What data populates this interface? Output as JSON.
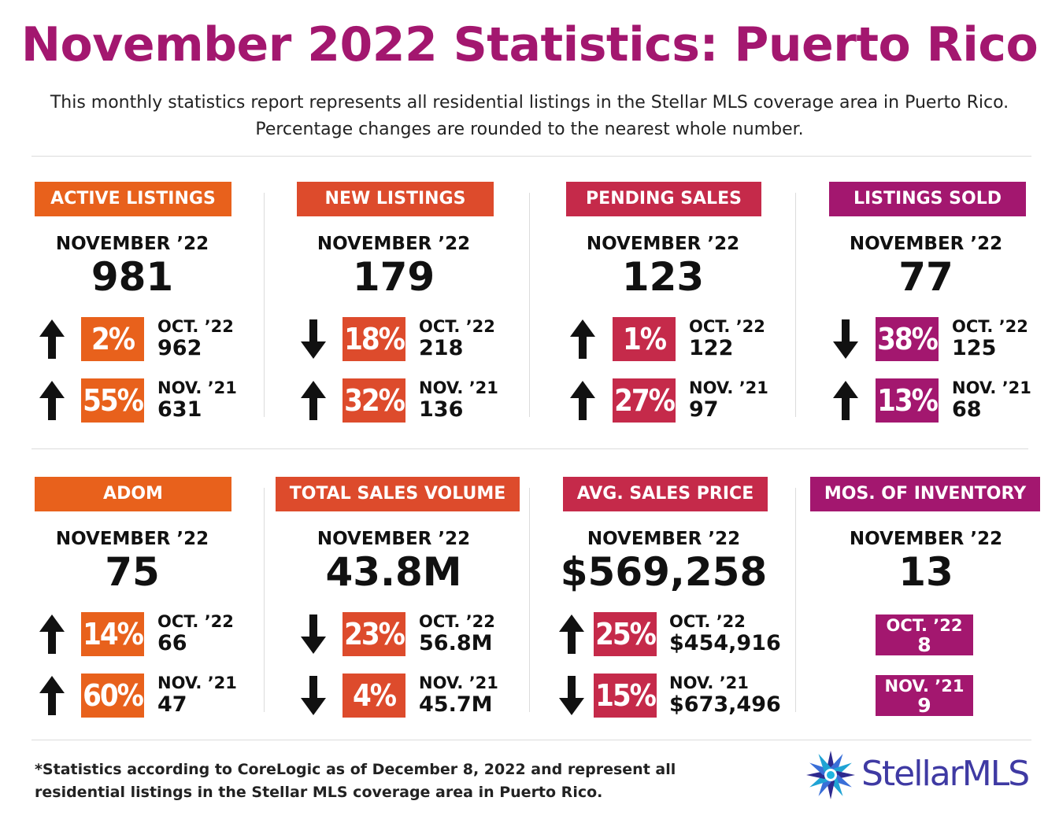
{
  "title": "November 2022 Statistics: Puerto Rico",
  "subtitle": "This monthly statistics report represents all residential listings in the Stellar MLS coverage area in Puerto Rico. Percentage changes are rounded to the nearest whole number.",
  "colors": {
    "title": "#a3176f",
    "orange": "#e8611c",
    "red_orange": "#dd4b2c",
    "crimson": "#c52a4a",
    "magenta": "#a3176f"
  },
  "panels": [
    {
      "label": "ACTIVE LISTINGS",
      "period": "NOVEMBER ’22",
      "value": "981",
      "rows": [
        {
          "direction": "up",
          "pct": "2%",
          "cmp_label": "OCT. ’22",
          "cmp_value": "962"
        },
        {
          "direction": "up",
          "pct": "55%",
          "cmp_label": "NOV. ’21",
          "cmp_value": "631"
        }
      ]
    },
    {
      "label": "NEW LISTINGS",
      "period": "NOVEMBER ’22",
      "value": "179",
      "rows": [
        {
          "direction": "down",
          "pct": "18%",
          "cmp_label": "OCT. ’22",
          "cmp_value": "218"
        },
        {
          "direction": "up",
          "pct": "32%",
          "cmp_label": "NOV. ’21",
          "cmp_value": "136"
        }
      ]
    },
    {
      "label": "PENDING SALES",
      "period": "NOVEMBER ’22",
      "value": "123",
      "rows": [
        {
          "direction": "up",
          "pct": "1%",
          "cmp_label": "OCT. ’22",
          "cmp_value": "122"
        },
        {
          "direction": "up",
          "pct": "27%",
          "cmp_label": "NOV. ’21",
          "cmp_value": "97"
        }
      ]
    },
    {
      "label": "LISTINGS SOLD",
      "period": "NOVEMBER ’22",
      "value": "77",
      "rows": [
        {
          "direction": "down",
          "pct": "38%",
          "cmp_label": "OCT. ’22",
          "cmp_value": "125"
        },
        {
          "direction": "up",
          "pct": "13%",
          "cmp_label": "NOV. ’21",
          "cmp_value": "68"
        }
      ]
    },
    {
      "label": "ADOM",
      "period": "NOVEMBER ’22",
      "value": "75",
      "rows": [
        {
          "direction": "up",
          "pct": "14%",
          "cmp_label": "OCT. ’22",
          "cmp_value": "66"
        },
        {
          "direction": "up",
          "pct": "60%",
          "cmp_label": "NOV. ’21",
          "cmp_value": "47"
        }
      ]
    },
    {
      "label": "TOTAL SALES VOLUME",
      "period": "NOVEMBER ’22",
      "value": "43.8M",
      "rows": [
        {
          "direction": "down",
          "pct": "23%",
          "cmp_label": "OCT. ’22",
          "cmp_value": "56.8M"
        },
        {
          "direction": "down",
          "pct": "4%",
          "cmp_label": "NOV. ’21",
          "cmp_value": "45.7M"
        }
      ]
    },
    {
      "label": "AVG. SALES PRICE",
      "period": "NOVEMBER ’22",
      "value": "$569,258",
      "rows": [
        {
          "direction": "up",
          "pct": "25%",
          "cmp_label": "OCT. ’22",
          "cmp_value": "$454,916"
        },
        {
          "direction": "down",
          "pct": "15%",
          "cmp_label": "NOV. ’21",
          "cmp_value": "$673,496"
        }
      ]
    },
    {
      "label": "MOS. OF INVENTORY",
      "period": "NOVEMBER ’22",
      "value": "13",
      "boxes": [
        {
          "cmp_label": "OCT. ’22",
          "cmp_value": "8"
        },
        {
          "cmp_label": "NOV. ’21",
          "cmp_value": "9"
        }
      ]
    }
  ],
  "footnote": "*Statistics according to CoreLogic as of December 8, 2022 and represent all residential listings in the Stellar MLS coverage area in Puerto Rico.",
  "logo": {
    "text": "StellarMLS",
    "icon": "stellar-star-icon"
  }
}
